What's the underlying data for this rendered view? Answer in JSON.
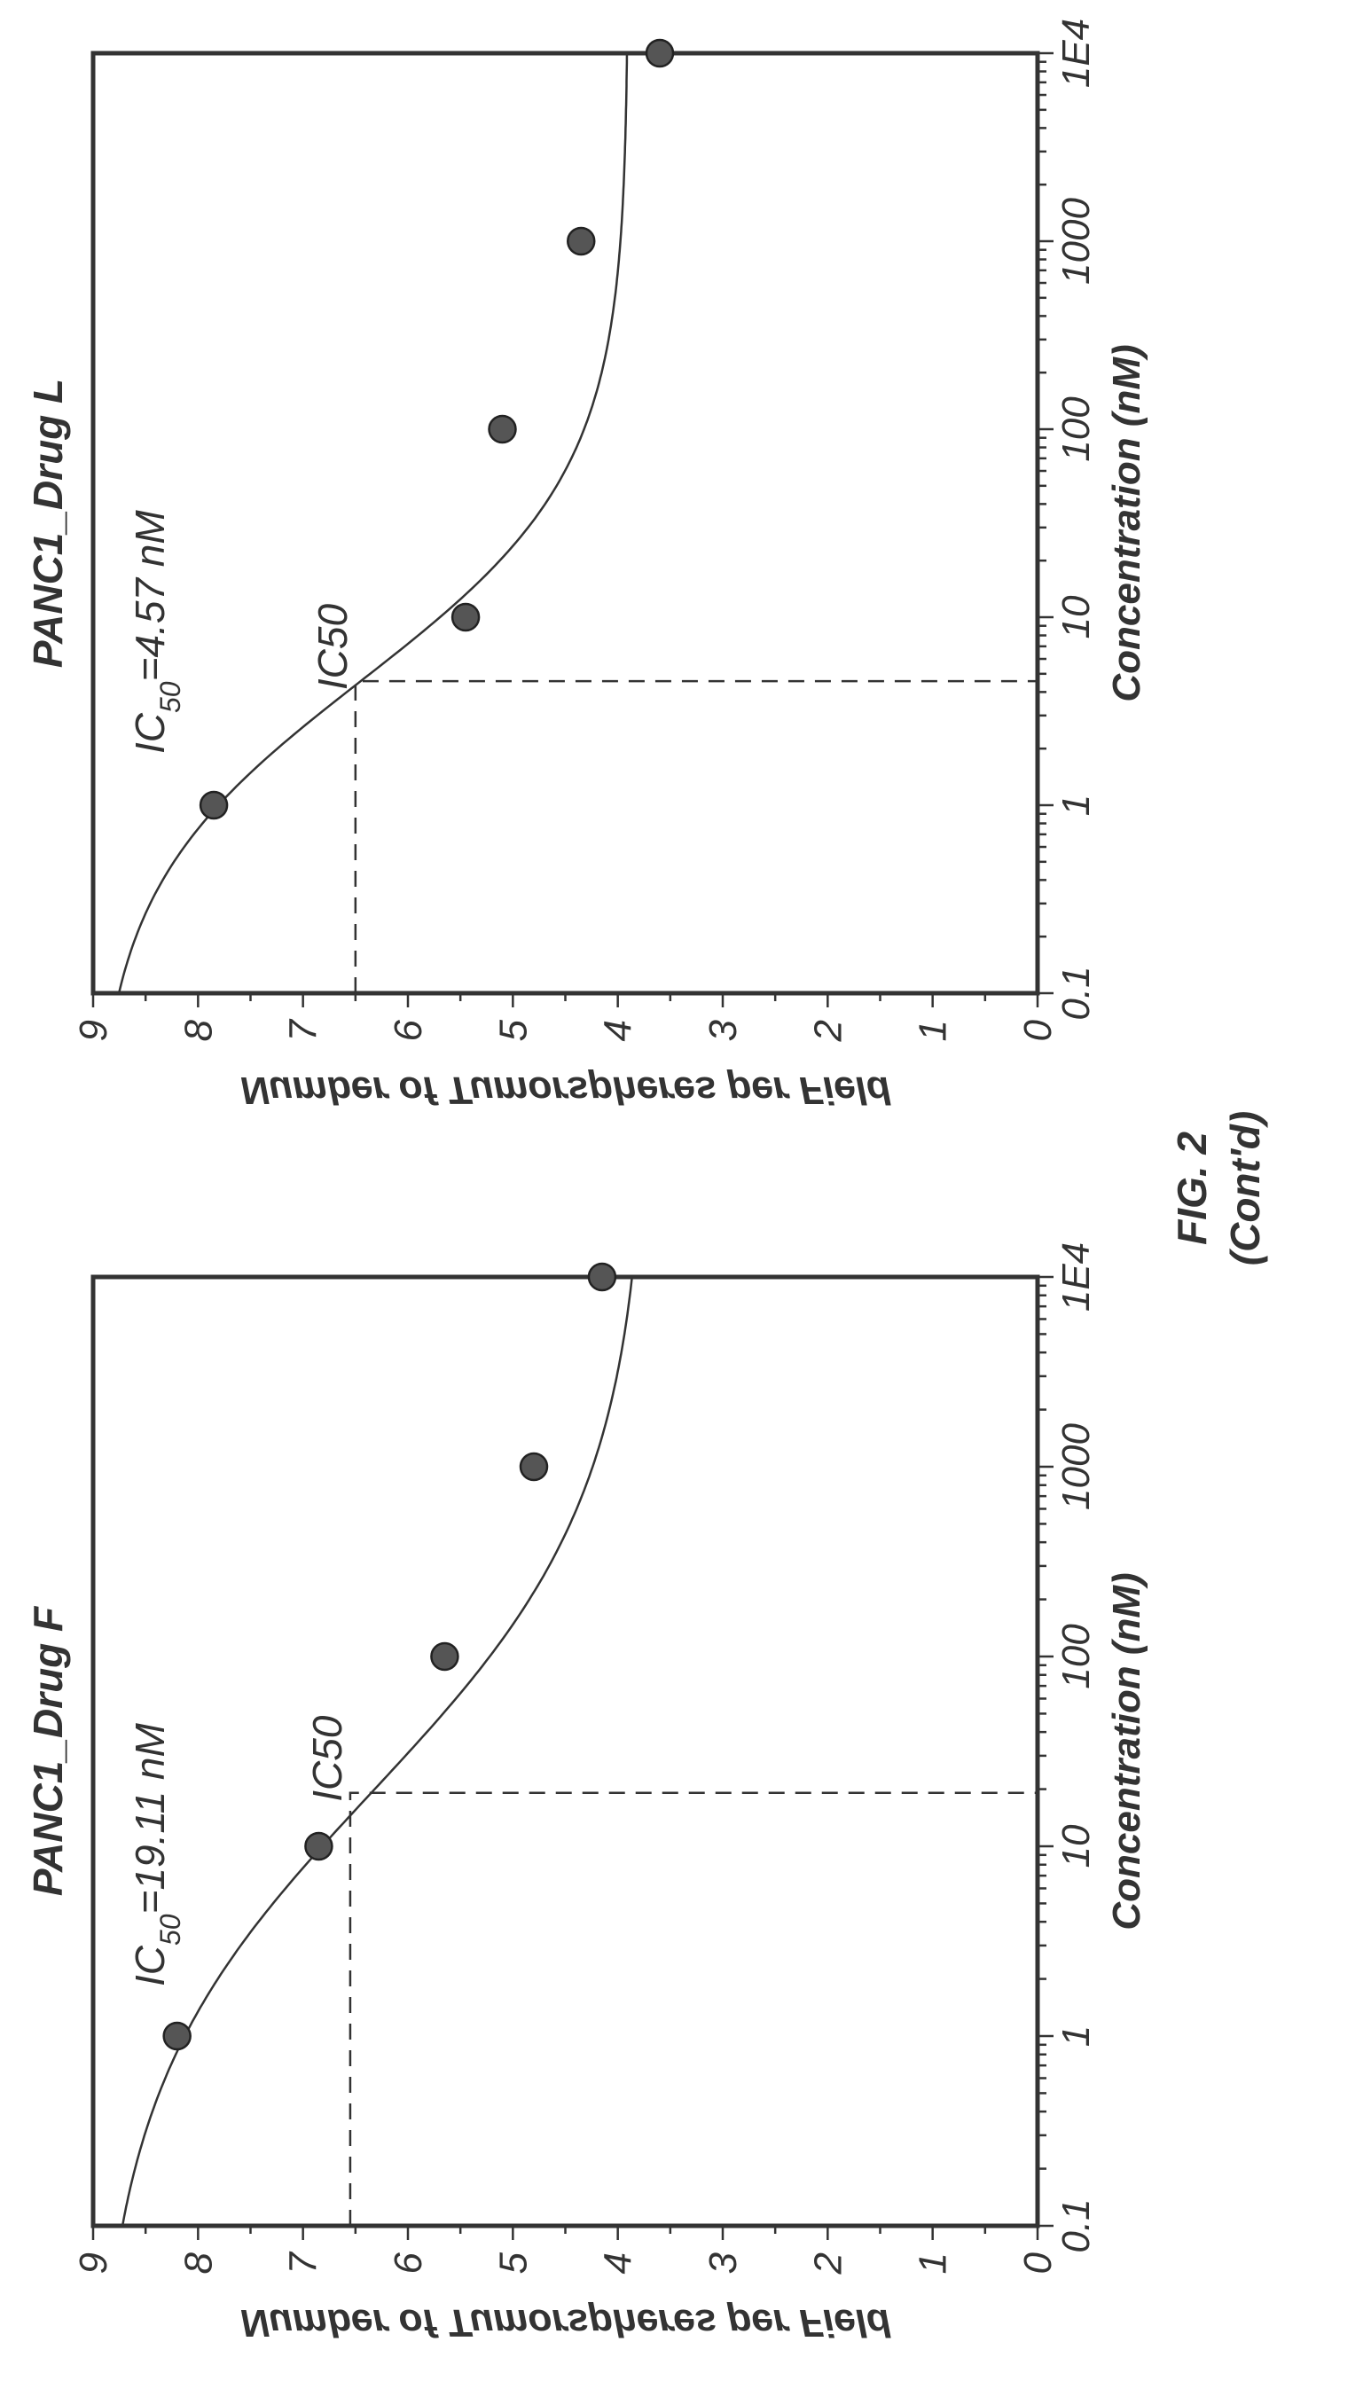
{
  "figure": {
    "label": "FIG. 2",
    "sublabel": "(Cont'd)"
  },
  "chart_data": [
    {
      "type": "scatter",
      "title": "PANC1_Drug F",
      "xlabel": "Concentration (nM)",
      "ylabel": "Number of Tumorspheres per Field",
      "x_scale": "log",
      "xlim": [
        0.1,
        10000
      ],
      "ylim": [
        0,
        9
      ],
      "x_tick_values": [
        0.1,
        1,
        10,
        100,
        1000,
        10000
      ],
      "x_tick_labels": [
        "0.1",
        "1",
        "10",
        "100",
        "1000",
        "1E4"
      ],
      "y_ticks": [
        0,
        1,
        2,
        3,
        4,
        5,
        6,
        7,
        8,
        9
      ],
      "grid": false,
      "annotations": {
        "ic50_text_main": "IC",
        "ic50_text_sub": "50",
        "ic50_text_rest": "=19.11 nM",
        "ic50_marker_label": "IC50",
        "ic50_x": 19.11,
        "ic50_y": 6.55
      },
      "series": [
        {
          "points": [
            {
              "x": 1,
              "y": 8.2
            },
            {
              "x": 10,
              "y": 6.85
            },
            {
              "x": 100,
              "y": 5.65
            },
            {
              "x": 1000,
              "y": 4.8
            },
            {
              "x": 10000,
              "y": 4.15
            }
          ],
          "fit": {
            "top": 9.0,
            "bottom": 3.7,
            "ic50": 19.11,
            "hill": 0.55
          }
        }
      ]
    },
    {
      "type": "scatter",
      "title": "PANC1_Drug L",
      "xlabel": "Concentration (nM)",
      "ylabel": "Number of Tumorspheres per Field",
      "x_scale": "log",
      "xlim": [
        0.1,
        10000
      ],
      "ylim": [
        0,
        9
      ],
      "x_tick_values": [
        0.1,
        1,
        10,
        100,
        1000,
        10000
      ],
      "x_tick_labels": [
        "0.1",
        "1",
        "10",
        "100",
        "1000",
        "1E4"
      ],
      "y_ticks": [
        0,
        1,
        2,
        3,
        4,
        5,
        6,
        7,
        8,
        9
      ],
      "grid": false,
      "annotations": {
        "ic50_text_main": "IC",
        "ic50_text_sub": "50",
        "ic50_text_rest": "=4.57 nM",
        "ic50_marker_label": "IC50",
        "ic50_x": 4.57,
        "ic50_y": 6.5
      },
      "series": [
        {
          "points": [
            {
              "x": 1,
              "y": 7.85
            },
            {
              "x": 10,
              "y": 5.45
            },
            {
              "x": 100,
              "y": 5.1
            },
            {
              "x": 1000,
              "y": 4.35
            },
            {
              "x": 10000,
              "y": 3.6
            }
          ],
          "fit": {
            "top": 9.0,
            "bottom": 3.9,
            "ic50": 4.57,
            "hill": 0.78
          }
        }
      ]
    }
  ]
}
